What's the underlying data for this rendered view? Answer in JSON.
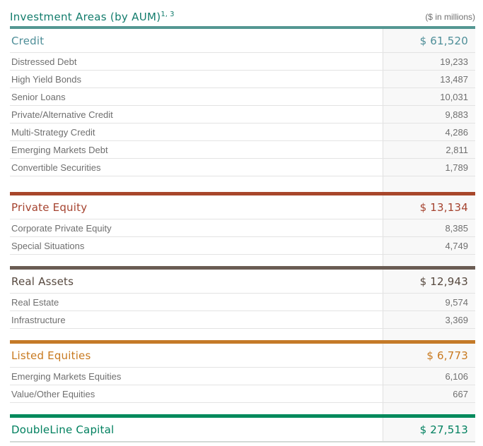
{
  "header": {
    "title": "Investment Areas (by AUM)",
    "superscript": "1, 3",
    "right_note": "($ in millions)"
  },
  "colors": {
    "title_color": "#127c6c",
    "note_color": "#6f6f6f",
    "sub_text": "#6f6f6f",
    "row_border": "#e3e3e3",
    "value_col_bg": "#f8f8f8",
    "value_col_border": "#e0e0e0",
    "bottom_rule": "#d3d9d6"
  },
  "sections": [
    {
      "name": "Credit",
      "accent": "#4e8e98",
      "rule_color": "#549792",
      "total": "$ 61,520",
      "rows": [
        {
          "label": "Distressed Debt",
          "value": "19,233"
        },
        {
          "label": "High Yield Bonds",
          "value": "13,487"
        },
        {
          "label": "Senior Loans",
          "value": "10,031"
        },
        {
          "label": "Private/Alternative Credit",
          "value": "9,883"
        },
        {
          "label": "Multi-Strategy Credit",
          "value": "4,286"
        },
        {
          "label": "Emerging Markets Debt",
          "value": "2,811"
        },
        {
          "label": "Convertible Securities",
          "value": "1,789"
        }
      ]
    },
    {
      "name": "Private Equity",
      "accent": "#a5432f",
      "rule_color": "#a8472b",
      "total": "$ 13,134",
      "rows": [
        {
          "label": "Corporate Private Equity",
          "value": "8,385"
        },
        {
          "label": "Special Situations",
          "value": "4,749"
        }
      ]
    },
    {
      "name": "Real Assets",
      "accent": "#57493f",
      "rule_color": "#6a5c53",
      "total": "$ 12,943",
      "rows": [
        {
          "label": "Real Estate",
          "value": "9,574"
        },
        {
          "label": "Infrastructure",
          "value": "3,369"
        }
      ]
    },
    {
      "name": "Listed Equities",
      "accent": "#c8791f",
      "rule_color": "#c47a28",
      "total": "$ 6,773",
      "rows": [
        {
          "label": "Emerging Markets Equities",
          "value": "6,106"
        },
        {
          "label": "Value/Other Equities",
          "value": "667"
        }
      ]
    },
    {
      "name": "DoubleLine Capital",
      "accent": "#00805f",
      "rule_color": "#008a5c",
      "total": "$ 27,513",
      "rows": []
    }
  ]
}
